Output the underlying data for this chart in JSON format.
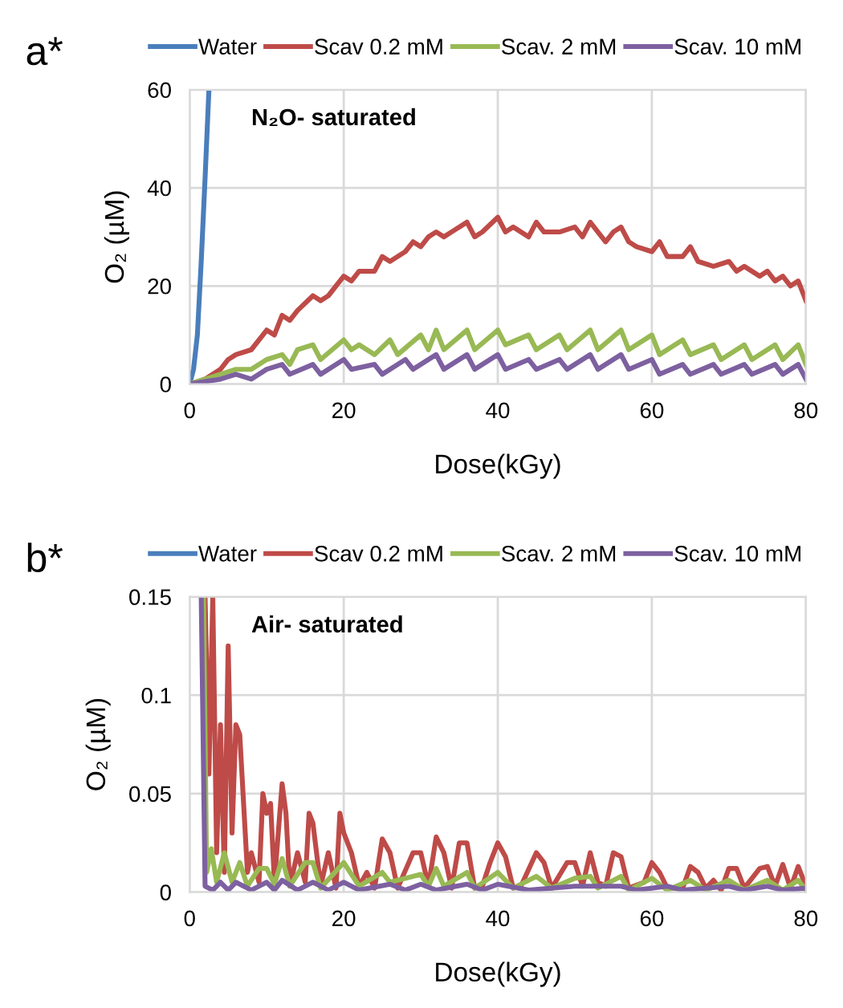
{
  "chart_data": [
    {
      "type": "line",
      "title": "a*",
      "xlabel": "Dose(kGy)",
      "ylabel": "O₂ (µM)",
      "xlim": [
        0,
        80
      ],
      "xticks": [
        0,
        20,
        40,
        60,
        80
      ],
      "ylim": [
        0,
        60
      ],
      "yticks": [
        0,
        20,
        40,
        60
      ],
      "grid": true,
      "legend": "top",
      "annotations": [
        "N₂O- saturated"
      ],
      "series": [
        {
          "name": "Water",
          "color": "#4a7ebb",
          "x": [
            0,
            0.5,
            1,
            1.5,
            2,
            2.5
          ],
          "values": [
            0,
            3,
            10,
            25,
            42,
            60
          ]
        },
        {
          "name": "Scav 0.2 mM",
          "color": "#be4b48",
          "x": [
            0,
            2,
            4,
            5,
            6,
            8,
            10,
            11,
            12,
            13,
            14,
            16,
            17,
            18,
            20,
            21,
            22,
            24,
            25,
            26,
            28,
            29,
            30,
            31,
            32,
            33,
            34,
            36,
            37,
            38,
            40,
            41,
            42,
            44,
            45,
            46,
            48,
            50,
            51,
            52,
            54,
            55,
            56,
            57,
            58,
            60,
            61,
            62,
            64,
            65,
            66,
            68,
            70,
            71,
            72,
            74,
            75,
            76,
            77,
            78,
            79,
            80
          ],
          "values": [
            0,
            1,
            3,
            5,
            6,
            7,
            11,
            10,
            14,
            13,
            15,
            18,
            17,
            18,
            22,
            21,
            23,
            23,
            26,
            25,
            27,
            29,
            28,
            30,
            31,
            30,
            31,
            33,
            30,
            31,
            34,
            31,
            32,
            30,
            33,
            31,
            31,
            32,
            30,
            33,
            29,
            31,
            32,
            29,
            28,
            27,
            29,
            26,
            26,
            28,
            25,
            24,
            25,
            23,
            24,
            22,
            23,
            21,
            22,
            20,
            21,
            17
          ]
        },
        {
          "name": "Scav. 2 mM",
          "color": "#98b954",
          "x": [
            0,
            4,
            6,
            8,
            10,
            12,
            13,
            14,
            16,
            17,
            20,
            21,
            22,
            24,
            26,
            27,
            30,
            31,
            32,
            33,
            36,
            37,
            40,
            41,
            44,
            45,
            48,
            49,
            52,
            53,
            56,
            57,
            60,
            61,
            64,
            65,
            68,
            69,
            72,
            73,
            76,
            77,
            79,
            80
          ],
          "values": [
            0,
            2,
            3,
            3,
            5,
            6,
            4,
            7,
            8,
            5,
            9,
            7,
            8,
            6,
            9,
            6,
            10,
            7,
            11,
            7,
            11,
            7,
            11,
            8,
            10,
            7,
            10,
            7,
            11,
            7,
            11,
            7,
            10,
            6,
            9,
            6,
            8,
            5,
            8,
            5,
            8,
            5,
            8,
            4
          ]
        },
        {
          "name": "Scav. 10 mM",
          "color": "#7d60a0",
          "x": [
            0,
            4,
            6,
            8,
            10,
            12,
            13,
            16,
            17,
            20,
            21,
            24,
            25,
            28,
            29,
            32,
            33,
            36,
            37,
            40,
            41,
            44,
            45,
            48,
            49,
            52,
            53,
            56,
            57,
            60,
            61,
            64,
            65,
            68,
            69,
            72,
            73,
            76,
            77,
            79,
            80
          ],
          "values": [
            0,
            1,
            2,
            1,
            3,
            4,
            2,
            4,
            2,
            5,
            3,
            4,
            2,
            5,
            3,
            6,
            3,
            6,
            3,
            6,
            3,
            5,
            3,
            5,
            3,
            6,
            3,
            6,
            3,
            5,
            2,
            4,
            2,
            4,
            2,
            4,
            2,
            4,
            2,
            4,
            1
          ]
        }
      ]
    },
    {
      "type": "line",
      "title": "b*",
      "xlabel": "Dose(kGy)",
      "ylabel": "O₂ (µM)",
      "xlim": [
        0,
        80
      ],
      "xticks": [
        0,
        20,
        40,
        60,
        80
      ],
      "ylim": [
        0,
        0.15
      ],
      "yticks": [
        0,
        0.05,
        0.1,
        0.15
      ],
      "grid": true,
      "legend": "top",
      "annotations": [
        "Air- saturated"
      ],
      "series": [
        {
          "name": "Water",
          "color": "#4a7ebb"
        },
        {
          "name": "Scav 0.2 mM",
          "color": "#be4b48",
          "x": [
            2,
            2.5,
            3,
            3.5,
            4,
            4.5,
            5,
            5.5,
            6,
            6.5,
            7.5,
            8,
            9,
            9.5,
            10,
            10.5,
            11,
            12,
            12.5,
            13,
            14,
            15,
            15.5,
            16,
            17,
            18,
            19,
            19.5,
            20,
            21,
            22,
            23,
            24,
            25,
            26,
            27,
            29,
            30,
            31,
            32,
            33,
            34,
            35,
            36,
            37,
            38,
            39,
            40,
            41,
            42,
            43,
            45,
            46,
            47,
            49,
            50,
            51,
            52,
            53,
            54,
            55,
            56,
            57,
            59,
            60,
            61,
            62,
            64,
            65,
            66,
            67,
            68,
            69,
            70,
            71,
            72,
            74,
            75,
            76,
            77,
            78,
            79,
            80
          ],
          "values": [
            0.15,
            0.06,
            0.15,
            0.02,
            0.085,
            0.01,
            0.125,
            0.03,
            0.085,
            0.08,
            0.01,
            0.02,
            0.005,
            0.05,
            0.04,
            0.045,
            0.005,
            0.055,
            0.04,
            0.003,
            0.02,
            0.005,
            0.04,
            0.035,
            0.003,
            0.02,
            0.002,
            0.04,
            0.03,
            0.02,
            0.003,
            0.01,
            0.002,
            0.027,
            0.02,
            0.002,
            0.02,
            0.02,
            0.003,
            0.028,
            0.02,
            0.002,
            0.025,
            0.025,
            0.002,
            0.003,
            0.015,
            0.025,
            0.018,
            0.002,
            0.003,
            0.02,
            0.015,
            0.002,
            0.015,
            0.015,
            0.003,
            0.02,
            0.005,
            0.003,
            0.02,
            0.018,
            0.002,
            0.005,
            0.015,
            0.01,
            0.002,
            0.002,
            0.013,
            0.01,
            0.002,
            0.006,
            0.001,
            0.012,
            0.012,
            0.002,
            0.012,
            0.013,
            0.003,
            0.014,
            0.002,
            0.013,
            0.003
          ]
        },
        {
          "name": "Scav. 2 mM",
          "color": "#98b954",
          "x": [
            1.8,
            2.2,
            2.8,
            3.5,
            4.5,
            5.5,
            6.5,
            7.5,
            9,
            10,
            11,
            12,
            13,
            15,
            16,
            17,
            20,
            22,
            25,
            26,
            30,
            31,
            32,
            33,
            36,
            37,
            40,
            42,
            45,
            47,
            50,
            52,
            53,
            56,
            57,
            60,
            62,
            65,
            67,
            70,
            72,
            75,
            77,
            79,
            80
          ],
          "values": [
            0.15,
            0.01,
            0.022,
            0.005,
            0.02,
            0.005,
            0.015,
            0.003,
            0.012,
            0.012,
            0.004,
            0.017,
            0.003,
            0.015,
            0.015,
            0.002,
            0.015,
            0.003,
            0.01,
            0.005,
            0.009,
            0.003,
            0.012,
            0.003,
            0.01,
            0.002,
            0.01,
            0.002,
            0.008,
            0.002,
            0.007,
            0.008,
            0.002,
            0.008,
            0.001,
            0.007,
            0.001,
            0.006,
            0.001,
            0.006,
            0.001,
            0.006,
            0.001,
            0.006,
            0.001
          ]
        },
        {
          "name": "Scav. 10 mM",
          "color": "#7d60a0",
          "x": [
            1.5,
            2,
            3,
            4,
            5,
            6,
            8,
            10,
            11,
            12,
            14,
            16,
            18,
            20,
            22,
            26,
            28,
            30,
            32,
            36,
            38,
            40,
            44,
            50,
            56,
            58,
            62,
            64,
            70,
            72,
            75,
            77,
            80
          ],
          "values": [
            0.15,
            0.003,
            0.001,
            0.005,
            0.001,
            0.005,
            0.001,
            0.005,
            0.001,
            0.006,
            0.001,
            0.005,
            0.001,
            0.005,
            0.001,
            0.004,
            0.001,
            0.004,
            0.001,
            0.004,
            0.001,
            0.004,
            0.001,
            0.003,
            0.003,
            0.001,
            0.003,
            0.001,
            0.003,
            0.001,
            0.003,
            0.001,
            0.002
          ]
        }
      ]
    }
  ]
}
